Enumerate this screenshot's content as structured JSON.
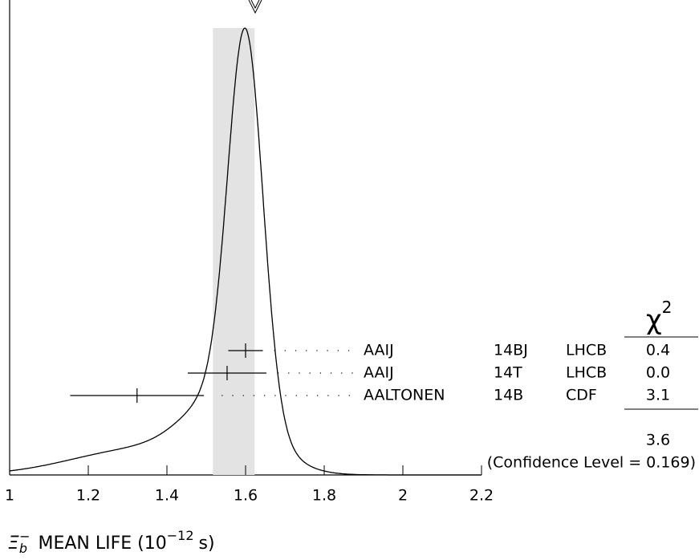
{
  "chart_data": {
    "type": "ideogram",
    "xlim": [
      1,
      2.2
    ],
    "xticks": [
      1,
      1.2,
      1.4,
      1.6,
      1.8,
      2,
      2.2
    ],
    "mean": 1.57,
    "band": [
      1.517,
      1.623
    ],
    "x_label": {
      "symbol": "Ξ",
      "subscript": "b",
      "superscript": "−",
      "text": "MEAN LIFE (10",
      "exponent": "−12",
      "unit": "s)"
    },
    "chi_header": {
      "symbol": "χ",
      "exponent": "2"
    },
    "measurements": [
      {
        "value": 1.6,
        "error": 0.044,
        "author": "AAIJ",
        "ref": "14BJ",
        "collab": "LHCB",
        "chi2": "0.4"
      },
      {
        "value": 1.553,
        "error": 0.1,
        "author": "AAIJ",
        "ref": "14T",
        "collab": "LHCB",
        "chi2": "0.0"
      },
      {
        "value": 1.324,
        "error": 0.17,
        "author": "AALTONEN",
        "ref": "14B",
        "collab": "CDF",
        "chi2": "3.1"
      }
    ],
    "chi2_total": "3.6",
    "confidence": "(Confidence Level = 0.169)"
  }
}
